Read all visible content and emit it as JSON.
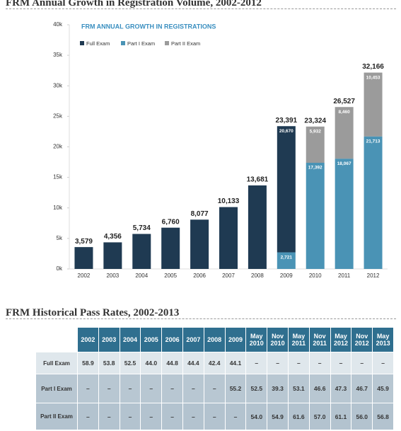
{
  "chart_heading": "FRM Annual Growth in Registration Volume, 2002-2012",
  "chart_data": {
    "type": "bar",
    "stacked": true,
    "grid": false,
    "title": "FRM ANNUAL GROWTH IN REGISTRATIONS",
    "categories": [
      "2002",
      "2003",
      "2004",
      "2005",
      "2006",
      "2007",
      "2008",
      "2009",
      "2010",
      "2011",
      "2012"
    ],
    "series": [
      {
        "name": "Full Exam",
        "color": "#1f3a52",
        "values": [
          3579,
          4356,
          5734,
          6760,
          8077,
          10133,
          13681,
          20670,
          null,
          null,
          null
        ],
        "value_labels": [
          null,
          null,
          null,
          null,
          null,
          null,
          null,
          "20,670",
          null,
          null,
          null
        ]
      },
      {
        "name": "Part I Exam",
        "color": "#4a93b5",
        "values": [
          null,
          null,
          null,
          null,
          null,
          null,
          null,
          2721,
          17392,
          18067,
          21713
        ],
        "value_labels": [
          null,
          null,
          null,
          null,
          null,
          null,
          null,
          "2,721",
          "17,392",
          "18,067",
          "21,713"
        ]
      },
      {
        "name": "Part II Exam",
        "color": "#9b9b9b",
        "values": [
          null,
          null,
          null,
          null,
          null,
          null,
          null,
          null,
          5932,
          8460,
          10453
        ],
        "value_labels": [
          null,
          null,
          null,
          null,
          null,
          null,
          null,
          null,
          "5,932",
          "8,460",
          "10,453"
        ]
      }
    ],
    "totals": {
      "values": [
        3579,
        4356,
        5734,
        6760,
        8077,
        10133,
        13681,
        23391,
        23324,
        26527,
        32166
      ],
      "value_labels": [
        "3,579",
        "4,356",
        "5,734",
        "6,760",
        "8,077",
        "10,133",
        "13,681",
        "23,391",
        "23,324",
        "26,527",
        "32,166"
      ]
    },
    "ylim": [
      0,
      40000
    ],
    "yticks": [
      {
        "value": 0,
        "label": "0k"
      },
      {
        "value": 5000,
        "label": "5k"
      },
      {
        "value": 10000,
        "label": "10k"
      },
      {
        "value": 15000,
        "label": "15k"
      },
      {
        "value": 20000,
        "label": "20k"
      },
      {
        "value": 25000,
        "label": "25k"
      },
      {
        "value": 30000,
        "label": "30k"
      },
      {
        "value": 35000,
        "label": "35k"
      },
      {
        "value": 40000,
        "label": "40k"
      }
    ]
  },
  "table_heading": "FRM Historical Pass Rates, 2002-2013",
  "table": {
    "header": [
      null,
      "2002",
      "2003",
      "2004",
      "2005",
      "2006",
      "2007",
      "2008",
      "2009",
      "May 2010",
      "Nov 2010",
      "May 2011",
      "Nov 2011",
      "May 2012",
      "Nov 2012",
      "May 2013"
    ],
    "rows": [
      [
        "Full Exam",
        "58.9",
        "53.8",
        "52.5",
        "44.0",
        "44.8",
        "44.4",
        "42.4",
        "44.1",
        "–",
        "–",
        "–",
        "–",
        "–",
        "–",
        "–"
      ],
      [
        "Part I Exam",
        "–",
        "–",
        "–",
        "–",
        "–",
        "–",
        "–",
        "55.2",
        "52.5",
        "39.3",
        "53.1",
        "46.6",
        "47.3",
        "46.7",
        "45.9"
      ],
      [
        "Part II Exam",
        "–",
        "–",
        "–",
        "–",
        "–",
        "–",
        "–",
        "–",
        "54.0",
        "54.9",
        "61.6",
        "57.0",
        "61.1",
        "56.0",
        "56.8"
      ]
    ]
  }
}
